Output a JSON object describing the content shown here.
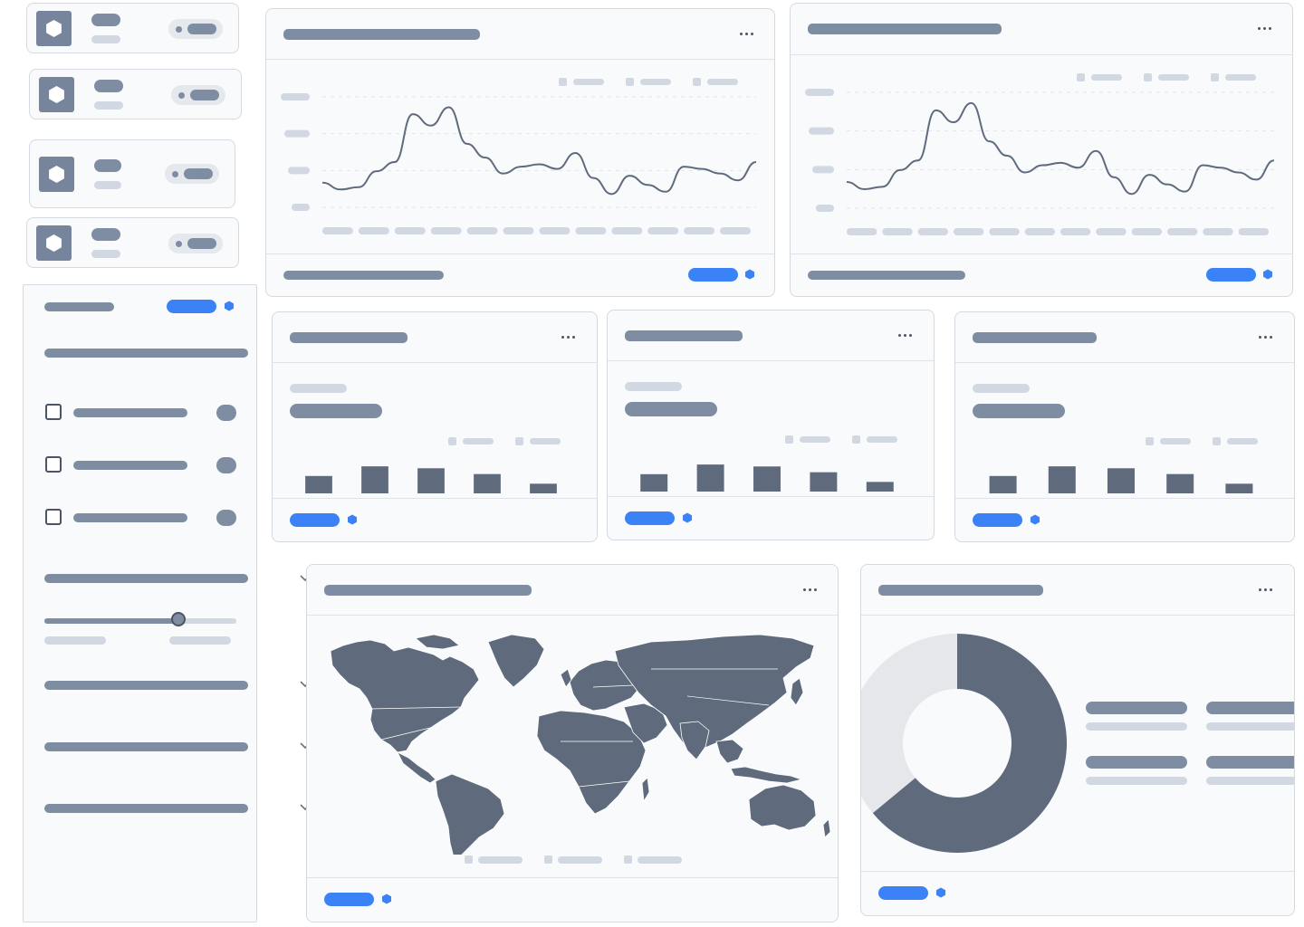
{
  "colors": {
    "panel_bg": "#f8fafc",
    "border": "#d5dae1",
    "placeholder_dark": "#7f8da3",
    "placeholder_light": "#d2d8e1",
    "accent": "#3b82f6",
    "series": "#5f6b7d",
    "donut_rest": "#e5e7ea"
  },
  "icons": {
    "tile": "hexagon-icon",
    "card_menu": "more-horizontal-icon",
    "footer_action": "hexagon-icon",
    "collapse": "chevron-down-icon"
  },
  "sidebar": {
    "slider_level": 0.7
  },
  "chart_data": [
    {
      "type": "line",
      "x": [
        0,
        1,
        2,
        3,
        4,
        5,
        6,
        7,
        8,
        9,
        10,
        11,
        12,
        13,
        14,
        15,
        16,
        17,
        18,
        19,
        20,
        21,
        22,
        23,
        24
      ],
      "values": [
        28,
        22,
        24,
        38,
        46,
        88,
        78,
        94,
        62,
        50,
        36,
        42,
        44,
        40,
        54,
        32,
        18,
        34,
        26,
        20,
        42,
        40,
        36,
        30,
        46
      ],
      "y_ticks": 4,
      "x_ticks": 12,
      "legend_entries": 3,
      "grid": true
    },
    {
      "type": "line",
      "x": [
        0,
        1,
        2,
        3,
        4,
        5,
        6,
        7,
        8,
        9,
        10,
        11,
        12,
        13,
        14,
        15,
        16,
        17,
        18,
        19,
        20,
        21,
        22,
        23,
        24
      ],
      "values": [
        28,
        22,
        24,
        38,
        46,
        88,
        78,
        94,
        62,
        50,
        36,
        42,
        44,
        40,
        54,
        32,
        18,
        34,
        26,
        20,
        42,
        40,
        36,
        30,
        46
      ],
      "y_ticks": 4,
      "x_ticks": 12,
      "legend_entries": 3,
      "grid": true
    },
    {
      "type": "bar",
      "values": [
        18,
        28,
        26,
        20,
        10
      ],
      "ylim": [
        0,
        30
      ],
      "legend_entries": 2
    },
    {
      "type": "bar",
      "values": [
        18,
        28,
        26,
        20,
        10
      ],
      "ylim": [
        0,
        30
      ],
      "legend_entries": 2
    },
    {
      "type": "bar",
      "values": [
        18,
        28,
        26,
        20,
        10
      ],
      "ylim": [
        0,
        30
      ],
      "legend_entries": 2
    },
    {
      "type": "pie",
      "values": [
        64,
        36
      ],
      "donut": true,
      "legend_entries": 4
    }
  ]
}
